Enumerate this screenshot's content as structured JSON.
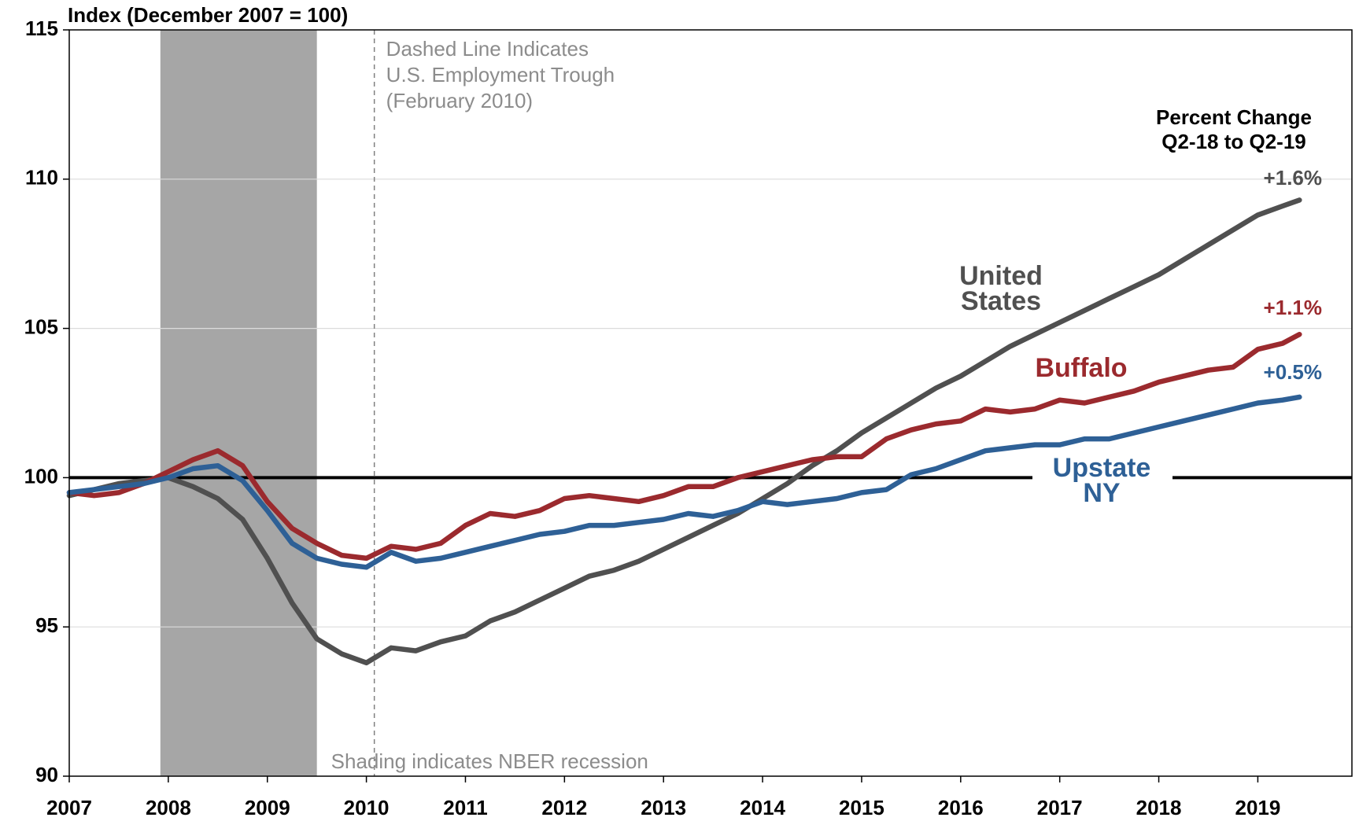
{
  "chart_data": {
    "type": "line",
    "title": "Index (December 2007 = 100)",
    "x": [
      2007.0,
      2007.25,
      2007.5,
      2007.75,
      2008.0,
      2008.25,
      2008.5,
      2008.75,
      2009.0,
      2009.25,
      2009.5,
      2009.75,
      2010.0,
      2010.25,
      2010.5,
      2010.75,
      2011.0,
      2011.25,
      2011.5,
      2011.75,
      2012.0,
      2012.25,
      2012.5,
      2012.75,
      2013.0,
      2013.25,
      2013.5,
      2013.75,
      2014.0,
      2014.25,
      2014.5,
      2014.75,
      2015.0,
      2015.25,
      2015.5,
      2015.75,
      2016.0,
      2016.25,
      2016.5,
      2016.75,
      2017.0,
      2017.25,
      2017.5,
      2017.75,
      2018.0,
      2018.25,
      2018.5,
      2018.75,
      2019.0,
      2019.25,
      2019.42
    ],
    "series": [
      {
        "name": "United States",
        "color": "#505050",
        "change_label": "+1.6%",
        "values": [
          99.4,
          99.6,
          99.8,
          99.9,
          100.0,
          99.7,
          99.3,
          98.6,
          97.3,
          95.8,
          94.6,
          94.1,
          93.8,
          94.3,
          94.2,
          94.5,
          94.7,
          95.2,
          95.5,
          95.9,
          96.3,
          96.7,
          96.9,
          97.2,
          97.6,
          98.0,
          98.4,
          98.8,
          99.3,
          99.8,
          100.4,
          100.9,
          101.5,
          102.0,
          102.5,
          103.0,
          103.4,
          103.9,
          104.4,
          104.8,
          105.2,
          105.6,
          106.0,
          106.4,
          106.8,
          107.3,
          107.8,
          108.3,
          108.8,
          109.1,
          109.3
        ]
      },
      {
        "name": "Buffalo",
        "color": "#9b2a2e",
        "change_label": "+1.1%",
        "values": [
          99.5,
          99.4,
          99.5,
          99.8,
          100.2,
          100.6,
          100.9,
          100.4,
          99.2,
          98.3,
          97.8,
          97.4,
          97.3,
          97.7,
          97.6,
          97.8,
          98.4,
          98.8,
          98.7,
          98.9,
          99.3,
          99.4,
          99.3,
          99.2,
          99.4,
          99.7,
          99.7,
          100.0,
          100.2,
          100.4,
          100.6,
          100.7,
          100.7,
          101.3,
          101.6,
          101.8,
          101.9,
          102.3,
          102.2,
          102.3,
          102.6,
          102.5,
          102.7,
          102.9,
          103.2,
          103.4,
          103.6,
          103.7,
          104.3,
          104.5,
          104.8
        ]
      },
      {
        "name": "Upstate NY",
        "color": "#2e6096",
        "change_label": "+0.5%",
        "values": [
          99.5,
          99.6,
          99.7,
          99.8,
          100.0,
          100.3,
          100.4,
          99.9,
          98.9,
          97.8,
          97.3,
          97.1,
          97.0,
          97.5,
          97.2,
          97.3,
          97.5,
          97.7,
          97.9,
          98.1,
          98.2,
          98.4,
          98.4,
          98.5,
          98.6,
          98.8,
          98.7,
          98.9,
          99.2,
          99.1,
          99.2,
          99.3,
          99.5,
          99.6,
          100.1,
          100.3,
          100.6,
          100.9,
          101.0,
          101.1,
          101.1,
          101.3,
          101.3,
          101.5,
          101.7,
          101.9,
          102.1,
          102.3,
          102.5,
          102.6,
          102.7
        ]
      }
    ],
    "xlim": [
      2007,
      2019.95
    ],
    "xticks": [
      2007,
      2008,
      2009,
      2010,
      2011,
      2012,
      2013,
      2014,
      2015,
      2016,
      2017,
      2018,
      2019
    ],
    "ylim": [
      90,
      115
    ],
    "yticks": [
      90,
      95,
      100,
      105,
      110,
      115
    ],
    "grid": true,
    "reference_line": 100,
    "recession": [
      2007.92,
      2009.5
    ],
    "trough_x": 2010.08,
    "annotations": {
      "trough": [
        "Dashed Line Indicates",
        "U.S. Employment Trough",
        "(February 2010)"
      ],
      "recession": "Shading indicates NBER recession",
      "change_title": [
        "Percent Change",
        "Q2-18 to Q2-19"
      ]
    }
  }
}
